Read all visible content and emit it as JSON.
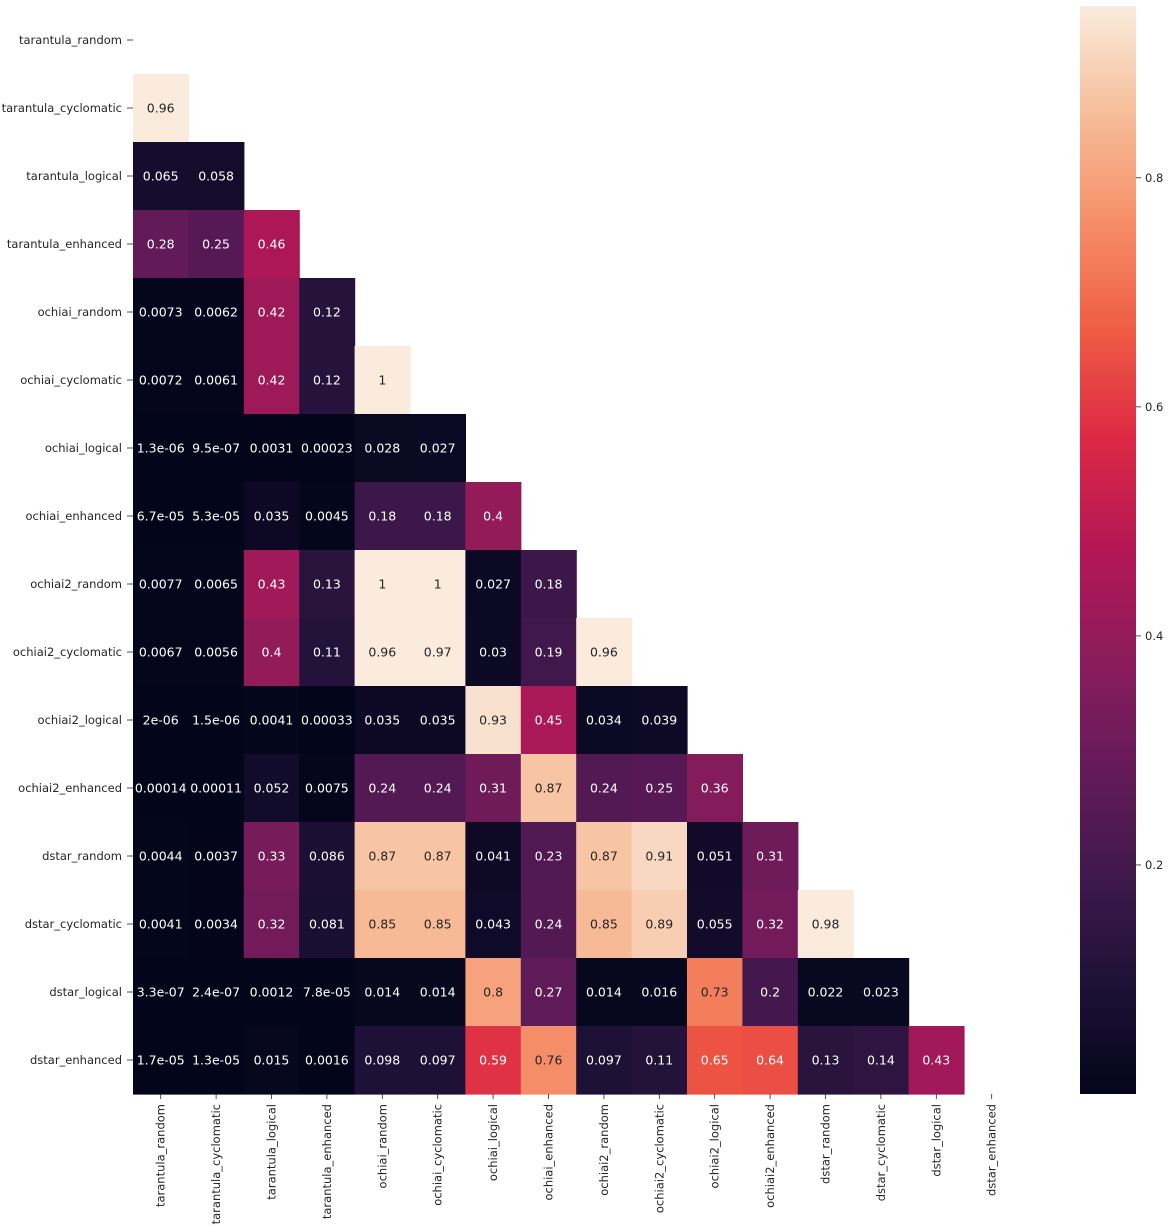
{
  "chart_data": {
    "type": "heatmap",
    "title": "",
    "xlabel": "",
    "ylabel": "",
    "mask": "upper-triangle-including-diagonal",
    "labels": [
      "tarantula_random",
      "tarantula_cyclomatic",
      "tarantula_logical",
      "tarantula_enhanced",
      "ochiai_random",
      "ochiai_cyclomatic",
      "ochiai_logical",
      "ochiai_enhanced",
      "ochiai2_random",
      "ochiai2_cyclomatic",
      "ochiai2_logical",
      "ochiai2_enhanced",
      "dstar_random",
      "dstar_cyclomatic",
      "dstar_logical",
      "dstar_enhanced"
    ],
    "colorbar": {
      "range": [
        0,
        0.95
      ],
      "ticks": [
        "0.2",
        "0.4",
        "0.6",
        "0.8"
      ],
      "tick_values": [
        0.2,
        0.4,
        0.6,
        0.8
      ],
      "colormap": "rocket",
      "placement": "right"
    },
    "cells": [
      [],
      [
        [
          "0.96",
          0.96
        ]
      ],
      [
        [
          "0.065",
          0.065
        ],
        [
          "0.058",
          0.058
        ]
      ],
      [
        [
          "0.28",
          0.28
        ],
        [
          "0.25",
          0.25
        ],
        [
          "0.46",
          0.46
        ]
      ],
      [
        [
          "0.0073",
          0.0073
        ],
        [
          "0.0062",
          0.0062
        ],
        [
          "0.42",
          0.42
        ],
        [
          "0.12",
          0.12
        ]
      ],
      [
        [
          "0.0072",
          0.0072
        ],
        [
          "0.0061",
          0.0061
        ],
        [
          "0.42",
          0.42
        ],
        [
          "0.12",
          0.12
        ],
        [
          "1",
          1
        ]
      ],
      [
        [
          "1.3e-06",
          1.3e-06
        ],
        [
          "9.5e-07",
          9.5e-07
        ],
        [
          "0.0031",
          0.0031
        ],
        [
          "0.00023",
          0.00023
        ],
        [
          "0.028",
          0.028
        ],
        [
          "0.027",
          0.027
        ]
      ],
      [
        [
          "6.7e-05",
          6.7e-05
        ],
        [
          "5.3e-05",
          5.3e-05
        ],
        [
          "0.035",
          0.035
        ],
        [
          "0.0045",
          0.0045
        ],
        [
          "0.18",
          0.18
        ],
        [
          "0.18",
          0.18
        ],
        [
          "0.4",
          0.4
        ]
      ],
      [
        [
          "0.0077",
          0.0077
        ],
        [
          "0.0065",
          0.0065
        ],
        [
          "0.43",
          0.43
        ],
        [
          "0.13",
          0.13
        ],
        [
          "1",
          1
        ],
        [
          "1",
          1
        ],
        [
          "0.027",
          0.027
        ],
        [
          "0.18",
          0.18
        ]
      ],
      [
        [
          "0.0067",
          0.0067
        ],
        [
          "0.0056",
          0.0056
        ],
        [
          "0.4",
          0.4
        ],
        [
          "0.11",
          0.11
        ],
        [
          "0.96",
          0.96
        ],
        [
          "0.97",
          0.97
        ],
        [
          "0.03",
          0.03
        ],
        [
          "0.19",
          0.19
        ],
        [
          "0.96",
          0.96
        ]
      ],
      [
        [
          "2e-06",
          2e-06
        ],
        [
          "1.5e-06",
          1.5e-06
        ],
        [
          "0.0041",
          0.0041
        ],
        [
          "0.00033",
          0.00033
        ],
        [
          "0.035",
          0.035
        ],
        [
          "0.035",
          0.035
        ],
        [
          "0.93",
          0.93
        ],
        [
          "0.45",
          0.45
        ],
        [
          "0.034",
          0.034
        ],
        [
          "0.039",
          0.039
        ]
      ],
      [
        [
          "0.00014",
          0.00014
        ],
        [
          "0.00011",
          0.00011
        ],
        [
          "0.052",
          0.052
        ],
        [
          "0.0075",
          0.0075
        ],
        [
          "0.24",
          0.24
        ],
        [
          "0.24",
          0.24
        ],
        [
          "0.31",
          0.31
        ],
        [
          "0.87",
          0.87
        ],
        [
          "0.24",
          0.24
        ],
        [
          "0.25",
          0.25
        ],
        [
          "0.36",
          0.36
        ]
      ],
      [
        [
          "0.0044",
          0.0044
        ],
        [
          "0.0037",
          0.0037
        ],
        [
          "0.33",
          0.33
        ],
        [
          "0.086",
          0.086
        ],
        [
          "0.87",
          0.87
        ],
        [
          "0.87",
          0.87
        ],
        [
          "0.041",
          0.041
        ],
        [
          "0.23",
          0.23
        ],
        [
          "0.87",
          0.87
        ],
        [
          "0.91",
          0.91
        ],
        [
          "0.051",
          0.051
        ],
        [
          "0.31",
          0.31
        ]
      ],
      [
        [
          "0.0041",
          0.0041
        ],
        [
          "0.0034",
          0.0034
        ],
        [
          "0.32",
          0.32
        ],
        [
          "0.081",
          0.081
        ],
        [
          "0.85",
          0.85
        ],
        [
          "0.85",
          0.85
        ],
        [
          "0.043",
          0.043
        ],
        [
          "0.24",
          0.24
        ],
        [
          "0.85",
          0.85
        ],
        [
          "0.89",
          0.89
        ],
        [
          "0.055",
          0.055
        ],
        [
          "0.32",
          0.32
        ],
        [
          "0.98",
          0.98
        ]
      ],
      [
        [
          "3.3e-07",
          3.3e-07
        ],
        [
          "2.4e-07",
          2.4e-07
        ],
        [
          "0.0012",
          0.0012
        ],
        [
          "7.8e-05",
          7.8e-05
        ],
        [
          "0.014",
          0.014
        ],
        [
          "0.014",
          0.014
        ],
        [
          "0.8",
          0.8
        ],
        [
          "0.27",
          0.27
        ],
        [
          "0.014",
          0.014
        ],
        [
          "0.016",
          0.016
        ],
        [
          "0.73",
          0.73
        ],
        [
          "0.2",
          0.2
        ],
        [
          "0.022",
          0.022
        ],
        [
          "0.023",
          0.023
        ]
      ],
      [
        [
          "1.7e-05",
          1.7e-05
        ],
        [
          "1.3e-05",
          1.3e-05
        ],
        [
          "0.015",
          0.015
        ],
        [
          "0.0016",
          0.0016
        ],
        [
          "0.098",
          0.098
        ],
        [
          "0.097",
          0.097
        ],
        [
          "0.59",
          0.59
        ],
        [
          "0.76",
          0.76
        ],
        [
          "0.097",
          0.097
        ],
        [
          "0.11",
          0.11
        ],
        [
          "0.65",
          0.65
        ],
        [
          "0.64",
          0.64
        ],
        [
          "0.13",
          0.13
        ],
        [
          "0.14",
          0.14
        ],
        [
          "0.43",
          0.43
        ]
      ]
    ]
  }
}
